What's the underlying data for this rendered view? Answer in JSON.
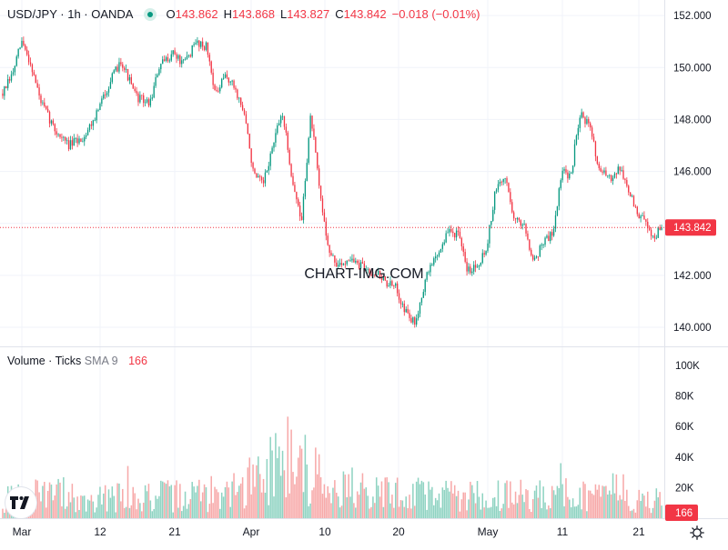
{
  "header": {
    "symbol": "USD/JPY · 1h · OANDA",
    "o_label": "O",
    "o_value": "143.862",
    "h_label": "H",
    "h_value": "143.868",
    "l_label": "L",
    "l_value": "143.827",
    "c_label": "C",
    "c_value": "143.842",
    "change": "−0.018 (−0.01%)"
  },
  "watermark": "CHART-IMG.COM",
  "volume_legend": {
    "title": "Volume · Ticks",
    "indicator": "SMA 9",
    "value": "166"
  },
  "price_label": "143.842",
  "volume_label": "166",
  "icons": {
    "logo": "tradingview-logo-icon",
    "settings": "gear-icon"
  },
  "colors": {
    "up": "#089981",
    "down": "#f23645",
    "up_volume": "#8fd3c2",
    "down_volume": "#f7a9a9",
    "grid": "#f0f3fa",
    "axis_text": "#131722",
    "price_line": "#f23645"
  },
  "chart_data": [
    {
      "type": "candlestick",
      "title": "USD/JPY · 1h · OANDA",
      "ylim": [
        139.3,
        152.6
      ],
      "y_ticks": [
        "152.000",
        "150.000",
        "148.000",
        "146.000",
        "142.000",
        "140.000"
      ],
      "x_ticks": [
        "Mar",
        "12",
        "21",
        "Apr",
        "10",
        "20",
        "May",
        "11",
        "21"
      ],
      "last_price": 143.842,
      "grid": true,
      "series": [
        {
          "anchors": [
            [
              0,
              149.0
            ],
            [
              2,
              149.7
            ],
            [
              4,
              151.0
            ],
            [
              6,
              150.1
            ],
            [
              8,
              148.7
            ],
            [
              11,
              147.6
            ],
            [
              14,
              147.0
            ],
            [
              17,
              147.3
            ],
            [
              20,
              148.3
            ],
            [
              22,
              149.2
            ],
            [
              25,
              150.3
            ],
            [
              28,
              148.9
            ],
            [
              31,
              148.6
            ],
            [
              33,
              150.0
            ],
            [
              36,
              150.6
            ],
            [
              38,
              150.1
            ],
            [
              41,
              151.0
            ],
            [
              43,
              150.8
            ],
            [
              45,
              148.9
            ],
            [
              47,
              149.7
            ],
            [
              49,
              149.2
            ],
            [
              51,
              148.2
            ],
            [
              53,
              145.8
            ],
            [
              55,
              145.5
            ],
            [
              57,
              147.0
            ],
            [
              59,
              148.3
            ],
            [
              61,
              145.8
            ],
            [
              63,
              144.0
            ],
            [
              65,
              148.2
            ],
            [
              67,
              145.0
            ],
            [
              69,
              142.8
            ],
            [
              71,
              142.3
            ],
            [
              73,
              142.7
            ],
            [
              75,
              142.4
            ],
            [
              77,
              142.2
            ],
            [
              79,
              142.1
            ],
            [
              81,
              141.7
            ],
            [
              83,
              141.5
            ],
            [
              85,
              140.6
            ],
            [
              87,
              140.1
            ],
            [
              88,
              141.0
            ],
            [
              90,
              142.3
            ],
            [
              92,
              142.9
            ],
            [
              94,
              143.7
            ],
            [
              96,
              143.6
            ],
            [
              98,
              142.2
            ],
            [
              100,
              142.4
            ],
            [
              102,
              143.0
            ],
            [
              104,
              145.3
            ],
            [
              106,
              145.8
            ],
            [
              108,
              144.1
            ],
            [
              110,
              144.0
            ],
            [
              112,
              142.5
            ],
            [
              114,
              143.3
            ],
            [
              116,
              143.6
            ],
            [
              118,
              146.0
            ],
            [
              120,
              145.8
            ],
            [
              121,
              147.5
            ],
            [
              122,
              148.3
            ],
            [
              124,
              147.6
            ],
            [
              126,
              146.0
            ],
            [
              128,
              145.7
            ],
            [
              130,
              146.2
            ],
            [
              132,
              145.3
            ],
            [
              134,
              144.3
            ],
            [
              136,
              144.0
            ],
            [
              137,
              143.4
            ],
            [
              139,
              143.842
            ]
          ]
        }
      ]
    },
    {
      "type": "bar",
      "title": "Volume · Ticks",
      "ylim": [
        0,
        100000
      ],
      "y_ticks": [
        "100K",
        "80K",
        "60K",
        "40K",
        "20K"
      ],
      "last_value": 166,
      "series": [
        {
          "name": "Volume",
          "profile": [
            [
              0,
              12000
            ],
            [
              10,
              16000
            ],
            [
              20,
              13000
            ],
            [
              30,
              14000
            ],
            [
              40,
              15000
            ],
            [
              50,
              18000
            ],
            [
              55,
              30000
            ],
            [
              60,
              42000
            ],
            [
              65,
              30000
            ],
            [
              70,
              22000
            ],
            [
              80,
              16000
            ],
            [
              90,
              16000
            ],
            [
              100,
              14000
            ],
            [
              110,
              15000
            ],
            [
              120,
              16000
            ],
            [
              130,
              13000
            ],
            [
              139,
              11000
            ]
          ]
        }
      ]
    }
  ]
}
